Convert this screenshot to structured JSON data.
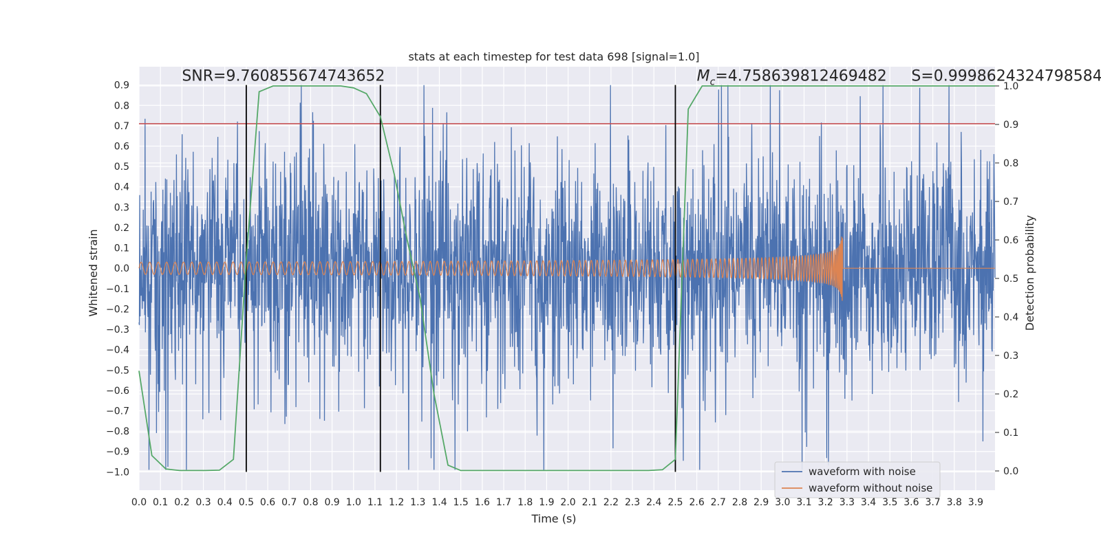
{
  "chart_data": {
    "type": "line",
    "title": "stats at each timestep for test data 698 [signal=1.0]",
    "xlabel": "Time (s)",
    "ylabel": "Whitened strain",
    "y2label": "Detection probability",
    "xlim": [
      0.0,
      3.99
    ],
    "ylim": [
      -1.09,
      0.99
    ],
    "y2lim": [
      -0.05,
      1.05
    ],
    "x_ticks": [
      0.0,
      0.1,
      0.2,
      0.3,
      0.4,
      0.5,
      0.6,
      0.7,
      0.8,
      0.9,
      1.0,
      1.1,
      1.2,
      1.3,
      1.4,
      1.5,
      1.6,
      1.7,
      1.8,
      1.9,
      2.0,
      2.1,
      2.2,
      2.3,
      2.4,
      2.5,
      2.6,
      2.7,
      2.8,
      2.9,
      3.0,
      3.1,
      3.2,
      3.3,
      3.4,
      3.5,
      3.6,
      3.7,
      3.8,
      3.9
    ],
    "x_tick_labels": [
      "0.0",
      "0.1",
      "0.2",
      "0.3",
      "0.4",
      "0.5",
      "0.6",
      "0.7",
      "0.8",
      "0.9",
      "1.0",
      "1.1",
      "1.2",
      "1.3",
      "1.4",
      "1.5",
      "1.6",
      "1.7",
      "1.8",
      "1.9",
      "2.0",
      "2.1",
      "2.2",
      "2.3",
      "2.4",
      "2.5",
      "2.6",
      "2.7",
      "2.8",
      "2.9",
      "3.0",
      "3.1",
      "3.2",
      "3.3",
      "3.4",
      "3.5",
      "3.6",
      "3.7",
      "3.8",
      "3.9"
    ],
    "y_ticks": [
      0.9,
      0.8,
      0.7,
      0.6,
      0.5,
      0.4,
      0.3,
      0.2,
      0.1,
      0.0,
      -0.1,
      -0.2,
      -0.3,
      -0.4,
      -0.5,
      -0.6,
      -0.7,
      -0.8,
      -0.9,
      -1.0
    ],
    "y_tick_labels": [
      "0.9",
      "0.8",
      "0.7",
      "0.6",
      "0.5",
      "0.4",
      "0.3",
      "0.2",
      "0.1",
      "0.0",
      "−0.1",
      "−0.2",
      "−0.3",
      "−0.4",
      "−0.5",
      "−0.6",
      "−0.7",
      "−0.8",
      "−0.9",
      "−1.0"
    ],
    "y2_ticks": [
      1.0,
      0.9,
      0.8,
      0.7,
      0.6,
      0.5,
      0.4,
      0.3,
      0.2,
      0.1,
      0.0
    ],
    "y2_tick_labels": [
      "1.0",
      "0.9",
      "0.8",
      "0.7",
      "0.6",
      "0.5",
      "0.4",
      "0.3",
      "0.2",
      "0.1",
      "0.0"
    ],
    "series": [
      {
        "name": "waveform with noise",
        "color": "#4c72b0",
        "kind": "noise",
        "amplitude": 0.9
      },
      {
        "name": "waveform without noise",
        "color": "#dd8452",
        "kind": "chirp",
        "start_freq": 25,
        "merger_time": 3.28,
        "start_amplitude": 0.03,
        "peak_amplitude": 0.25
      },
      {
        "name": "detection probability",
        "color": "#55a868",
        "axis": "right",
        "x": [
          0.0,
          0.06,
          0.125,
          0.19,
          0.25,
          0.31,
          0.375,
          0.44,
          0.5,
          0.56,
          0.625,
          0.69,
          0.75,
          0.81,
          0.875,
          0.94,
          1.0,
          1.06,
          1.125,
          1.19,
          1.25,
          1.31,
          1.375,
          1.44,
          1.5,
          1.56,
          1.625,
          1.69,
          1.75,
          1.81,
          1.875,
          1.94,
          2.0,
          2.06,
          2.125,
          2.19,
          2.25,
          2.31,
          2.375,
          2.44,
          2.5,
          2.56,
          2.625,
          2.69,
          2.75,
          2.81,
          2.875,
          2.94,
          3.0,
          3.06,
          3.125,
          3.19,
          3.25,
          3.31,
          3.375,
          3.44,
          3.5,
          3.56,
          3.625,
          3.69,
          3.75,
          3.81,
          3.875,
          3.94,
          3.99
        ],
        "y": [
          0.26,
          0.04,
          0.005,
          0.001,
          0.001,
          0.001,
          0.002,
          0.03,
          0.55,
          0.985,
          1.0,
          1.0,
          1.0,
          1.0,
          1.0,
          1.0,
          0.995,
          0.98,
          0.92,
          0.77,
          0.6,
          0.45,
          0.2,
          0.015,
          0.001,
          0.001,
          0.001,
          0.001,
          0.001,
          0.001,
          0.001,
          0.001,
          0.001,
          0.001,
          0.001,
          0.001,
          0.001,
          0.001,
          0.001,
          0.003,
          0.03,
          0.94,
          1.0,
          1.0,
          1.0,
          1.0,
          1.0,
          1.0,
          1.0,
          1.0,
          1.0,
          1.0,
          1.0,
          1.0,
          1.0,
          1.0,
          1.0,
          1.0,
          1.0,
          1.0,
          1.0,
          1.0,
          1.0,
          1.0,
          1.0
        ]
      }
    ],
    "threshold_line": {
      "y": 0.71,
      "color": "#c44e52"
    },
    "vertical_lines": [
      0.5,
      1.125,
      2.5
    ],
    "annotations": [
      {
        "text": "SNR=9.760855674743652",
        "x": 0.2,
        "y": 0.92
      },
      {
        "text": "=4.758639812469482",
        "prefix_main": "M",
        "prefix_sub": "c",
        "x": 2.6,
        "y": 0.92
      },
      {
        "text": "S=0.9998624324798584",
        "x": 3.6,
        "y": 0.92
      }
    ],
    "legend": {
      "position": "lower-right",
      "entries": [
        "waveform with noise",
        "waveform without noise"
      ]
    },
    "background": "#eaeaf2",
    "grid": true
  }
}
